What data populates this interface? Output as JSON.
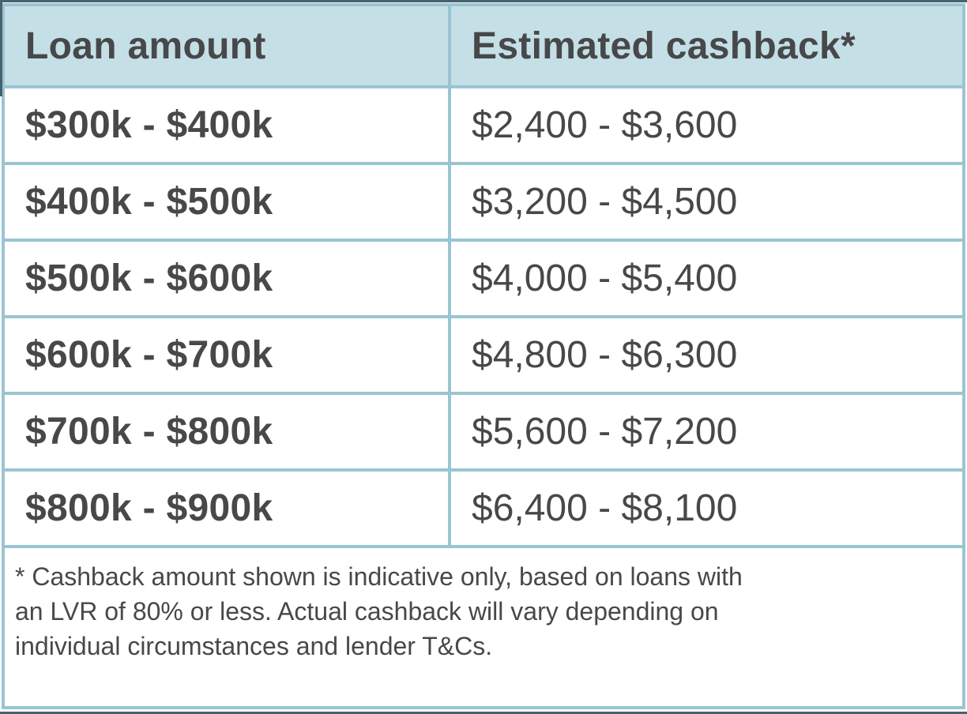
{
  "theme": {
    "header_bg": "#c5dfe6",
    "border_color": "#99c5d3",
    "text_color": "#47484a",
    "dark_rule_color": "#48626d",
    "cell_bg": "#ffffff"
  },
  "table": {
    "columns": [
      {
        "label": "Loan amount"
      },
      {
        "label": "Estimated cashback*"
      }
    ],
    "rows": [
      {
        "loan_amount": "$300k - $400k",
        "estimated_cashback": "$2,400 - $3,600"
      },
      {
        "loan_amount": "$400k - $500k",
        "estimated_cashback": "$3,200 - $4,500"
      },
      {
        "loan_amount": "$500k - $600k",
        "estimated_cashback": "$4,000 - $5,400"
      },
      {
        "loan_amount": "$600k - $700k",
        "estimated_cashback": "$4,800 - $6,300"
      },
      {
        "loan_amount": "$700k - $800k",
        "estimated_cashback": "$5,600 - $7,200"
      },
      {
        "loan_amount": "$800k - $900k",
        "estimated_cashback": "$6,400 - $8,100"
      }
    ],
    "footnote": {
      "lines": [
        "* Cashback amount shown is indicative only, based on loans with",
        "an LVR of 80% or less. Actual cashback will vary depending on",
        "individual circumstances and lender T&Cs."
      ],
      "full_text": "* Cashback amount shown is indicative only, based on loans with an LVR of 80% or less. Actual cashback will vary depending on individual circumstances and lender T&Cs."
    }
  },
  "chart_data": {
    "type": "table",
    "columns": [
      "Loan amount",
      "Estimated cashback*"
    ],
    "rows": [
      [
        "$300k - $400k",
        "$2,400 - $3,600"
      ],
      [
        "$400k - $500k",
        "$3,200 - $4,500"
      ],
      [
        "$500k - $600k",
        "$4,000 - $5,400"
      ],
      [
        "$600k - $700k",
        "$4,800 - $6,300"
      ],
      [
        "$700k - $800k",
        "$5,600 - $7,200"
      ],
      [
        "$800k - $900k",
        "$6,400 - $8,100"
      ]
    ],
    "footnote": "* Cashback amount shown is indicative only, based on loans with an LVR of 80% or less. Actual cashback will vary depending on individual circumstances and lender T&Cs."
  }
}
